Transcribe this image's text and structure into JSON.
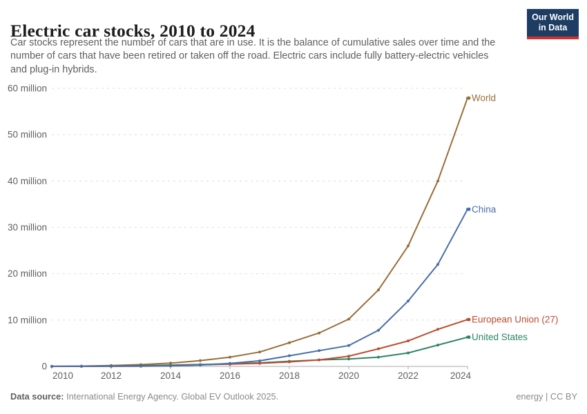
{
  "header": {
    "title": "Electric car stocks, 2010 to 2024",
    "subtitle_lines": [
      "Car stocks represent the number of cars that are in use. It is the balance of cumulative sales over time and the",
      "number of cars that have been retired or taken off the road. Electric cars include fully battery-electric vehicles",
      "and plug-in hybrids."
    ],
    "logo": {
      "line1": "Our World",
      "line2": "in Data"
    }
  },
  "footer": {
    "source_label": "Data source:",
    "source_text": " International Energy Agency. Global EV Outlook 2025.",
    "license": "energy | CC BY"
  },
  "colors": {
    "logo_bg": "#1d3d63",
    "logo_red": "#d3312e",
    "gridline": "#dcdcdc",
    "axis": "#a8a8a8",
    "tick_text": "#5e5e5e"
  },
  "chart_data": {
    "type": "line",
    "title": "Electric car stocks, 2010 to 2024",
    "x": [
      2010,
      2011,
      2012,
      2013,
      2014,
      2015,
      2016,
      2017,
      2018,
      2019,
      2020,
      2021,
      2022,
      2023,
      2024
    ],
    "series": [
      {
        "name": "World",
        "color": "#996D39",
        "values": [
          0.02,
          0.06,
          0.18,
          0.38,
          0.7,
          1.25,
          2.0,
          3.1,
          5.1,
          7.2,
          10.2,
          16.5,
          26.0,
          40.0,
          57.9
        ]
      },
      {
        "name": "China",
        "color": "#466EAA",
        "values": [
          0.01,
          0.01,
          0.02,
          0.03,
          0.1,
          0.3,
          0.65,
          1.2,
          2.3,
          3.4,
          4.5,
          7.8,
          14.1,
          22.0,
          33.9
        ]
      },
      {
        "name": "European Union (27)",
        "color": "#BE4B2D",
        "values": [
          0.0,
          0.01,
          0.03,
          0.07,
          0.15,
          0.33,
          0.47,
          0.65,
          0.97,
          1.4,
          2.2,
          3.8,
          5.5,
          8.0,
          10.1
        ]
      },
      {
        "name": "United States",
        "color": "#2C8465",
        "values": [
          0.0,
          0.02,
          0.07,
          0.17,
          0.29,
          0.4,
          0.56,
          0.76,
          1.1,
          1.4,
          1.6,
          2.0,
          2.9,
          4.6,
          6.3
        ]
      }
    ],
    "units": "million cars",
    "yticks": [
      0,
      10,
      20,
      30,
      40,
      50,
      60
    ],
    "ytick_labels": [
      "0",
      "10 million",
      "20 million",
      "30 million",
      "40 million",
      "50 million",
      "60 million"
    ],
    "xticks": [
      2010,
      2012,
      2014,
      2016,
      2018,
      2020,
      2022,
      2024
    ],
    "ylim": [
      0,
      60
    ],
    "xlim": [
      2010,
      2024
    ],
    "grid": "dashed-horizontal",
    "legend_position": "right-end-labels"
  }
}
